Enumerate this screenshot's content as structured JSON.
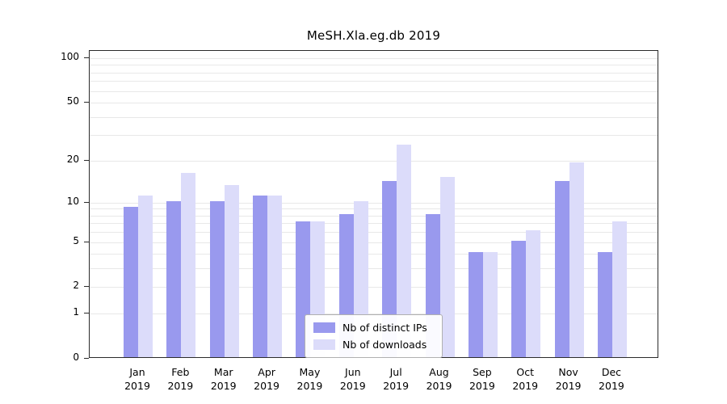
{
  "chart_data": {
    "type": "bar",
    "title": "MeSH.Xla.eg.db 2019",
    "categories": [
      "Jan",
      "Feb",
      "Mar",
      "Apr",
      "May",
      "Jun",
      "Jul",
      "Aug",
      "Sep",
      "Oct",
      "Nov",
      "Dec"
    ],
    "x_year_label": "2019",
    "series": [
      {
        "name": "Nb of distinct IPs",
        "color": "#9999ee",
        "values": [
          9,
          10,
          10,
          11,
          7,
          8,
          14,
          8,
          4,
          5,
          14,
          4
        ]
      },
      {
        "name": "Nb of downloads",
        "color": "#dcdcfa",
        "values": [
          11,
          16,
          13,
          11,
          7,
          10,
          25,
          15,
          4,
          6,
          19,
          7
        ]
      }
    ],
    "yticks": [
      0,
      1,
      2,
      5,
      10,
      20,
      50,
      100
    ],
    "gridlines": [
      1,
      2,
      3,
      4,
      5,
      6,
      7,
      8,
      9,
      10,
      20,
      30,
      40,
      50,
      60,
      70,
      80,
      90,
      100
    ],
    "yscale": "log1p",
    "ylim": [
      0,
      100
    ],
    "xlabel": "",
    "ylabel": "",
    "grid": "horizontal",
    "legend_position": "bottom-center"
  }
}
